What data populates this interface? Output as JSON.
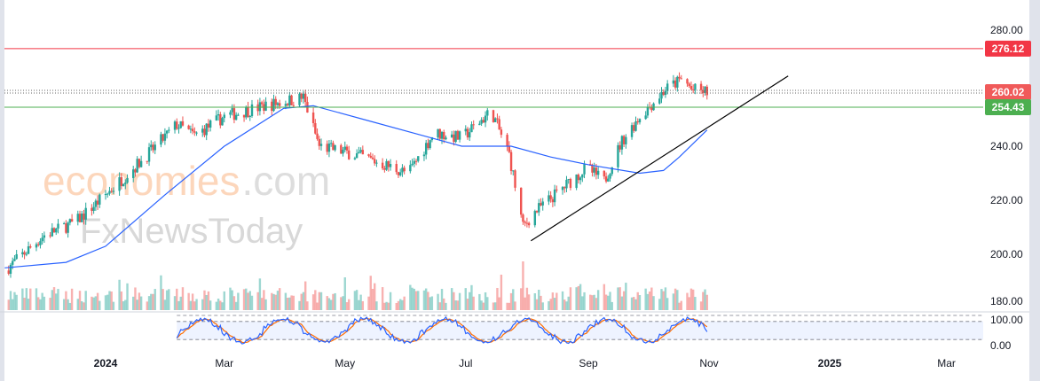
{
  "watermark": {
    "part1": "economies",
    "part2": ".com",
    "part3": "FxNewsToday"
  },
  "colors": {
    "up": "#26a69a",
    "down": "#ef5350",
    "ma": "#2962ff",
    "resistance": "#f23645",
    "support": "#4caf50",
    "trend": "#000000",
    "stoch_k": "#2962ff",
    "stoch_d": "#ff6d00"
  },
  "chart_data": {
    "type": "candlestick",
    "price_axis": {
      "ticks": [
        "280.00",
        "240.00",
        "220.00",
        "200.00",
        "180.00"
      ],
      "tick_values": [
        280,
        240,
        220,
        200,
        180
      ],
      "ylim": [
        180,
        282
      ]
    },
    "time_axis": {
      "labels": [
        "2024",
        "Mar",
        "May",
        "Jul",
        "Sep",
        "Nov",
        "2025",
        "Mar"
      ],
      "label_days": [
        0,
        60,
        121,
        182,
        244,
        305,
        366,
        425
      ]
    },
    "price_waypoints": [
      [
        -51,
        194
      ],
      [
        -31,
        207
      ],
      [
        -15,
        212
      ],
      [
        0,
        222
      ],
      [
        20,
        236
      ],
      [
        36,
        248
      ],
      [
        45,
        244
      ],
      [
        60,
        251
      ],
      [
        81,
        255
      ],
      [
        100,
        258
      ],
      [
        108,
        240
      ],
      [
        126,
        237
      ],
      [
        153,
        230
      ],
      [
        166,
        245
      ],
      [
        180,
        243
      ],
      [
        195,
        253
      ],
      [
        204,
        237
      ],
      [
        211,
        210
      ],
      [
        216,
        215
      ],
      [
        243,
        232
      ],
      [
        252,
        227
      ],
      [
        261,
        242
      ],
      [
        270,
        251
      ],
      [
        283,
        261
      ],
      [
        292,
        265
      ],
      [
        296,
        261
      ],
      [
        304,
        260
      ]
    ],
    "ma_waypoints": [
      [
        -51,
        195
      ],
      [
        -20,
        197
      ],
      [
        0,
        203
      ],
      [
        30,
        222
      ],
      [
        60,
        240
      ],
      [
        90,
        254
      ],
      [
        105,
        255
      ],
      [
        130,
        250
      ],
      [
        160,
        244
      ],
      [
        180,
        240
      ],
      [
        205,
        240
      ],
      [
        225,
        236
      ],
      [
        245,
        233
      ],
      [
        270,
        230
      ],
      [
        282,
        231
      ],
      [
        290,
        236
      ],
      [
        304,
        246
      ]
    ],
    "levels": [
      {
        "name": "resistance",
        "value": 276.12,
        "label": "276.12"
      },
      {
        "name": "last-price",
        "value": 260.02,
        "label": "260.02"
      },
      {
        "name": "support",
        "value": 254.43,
        "label": "254.43"
      }
    ],
    "trendline": {
      "from": [
        215,
        205
      ],
      "to": [
        345,
        266
      ]
    },
    "stochastic": {
      "ticks": [
        "100.00",
        "0.00"
      ],
      "upper": 80,
      "lower": 20,
      "start_day": 36,
      "end_day": 304
    }
  }
}
